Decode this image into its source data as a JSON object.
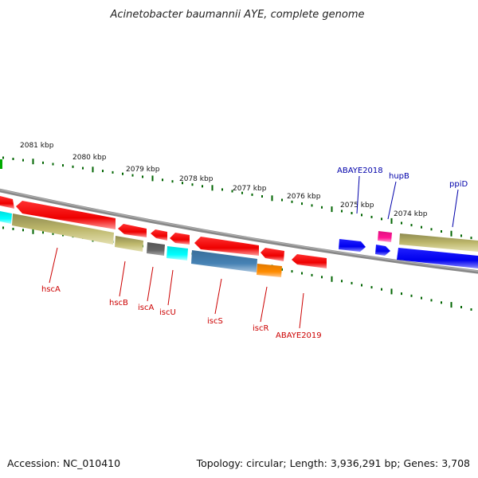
{
  "title": "Acinetobacter baumannii AYE, complete genome",
  "footer": {
    "accession": "Accession: NC_010410",
    "summary": "Topology: circular; Length: 3,936,291 bp; Genes: 3,708"
  },
  "ticks": [
    {
      "label": "2081 kbp"
    },
    {
      "label": "2080 kbp"
    },
    {
      "label": "2079 kbp"
    },
    {
      "label": "2078 kbp"
    },
    {
      "label": "2077 kbp"
    },
    {
      "label": "2076 kbp"
    },
    {
      "label": "2075 kbp"
    },
    {
      "label": "2074 kbp"
    }
  ],
  "gene_labels": [
    {
      "name": "hscA",
      "color": "#cc0000"
    },
    {
      "name": "hscB",
      "color": "#cc0000"
    },
    {
      "name": "iscA",
      "color": "#cc0000"
    },
    {
      "name": "iscU",
      "color": "#cc0000"
    },
    {
      "name": "iscS",
      "color": "#cc0000"
    },
    {
      "name": "iscR",
      "color": "#cc0000"
    },
    {
      "name": "ABAYE2019",
      "color": "#cc0000"
    },
    {
      "name": "ABAYE2018",
      "color": "#0000aa"
    },
    {
      "name": "hupB",
      "color": "#0000aa"
    },
    {
      "name": "ppiD",
      "color": "#0000aa"
    }
  ],
  "colors": {
    "reverse_cds": "#ff0000",
    "forward_cds": "#0000ff",
    "olive": "#bdb76b",
    "cyan": "#00ffff",
    "gray": "#666666",
    "steel": "#4682b4",
    "orange": "#ff8c00",
    "magenta": "#ff1493",
    "backbone": "#777777",
    "tick": "#006400"
  }
}
